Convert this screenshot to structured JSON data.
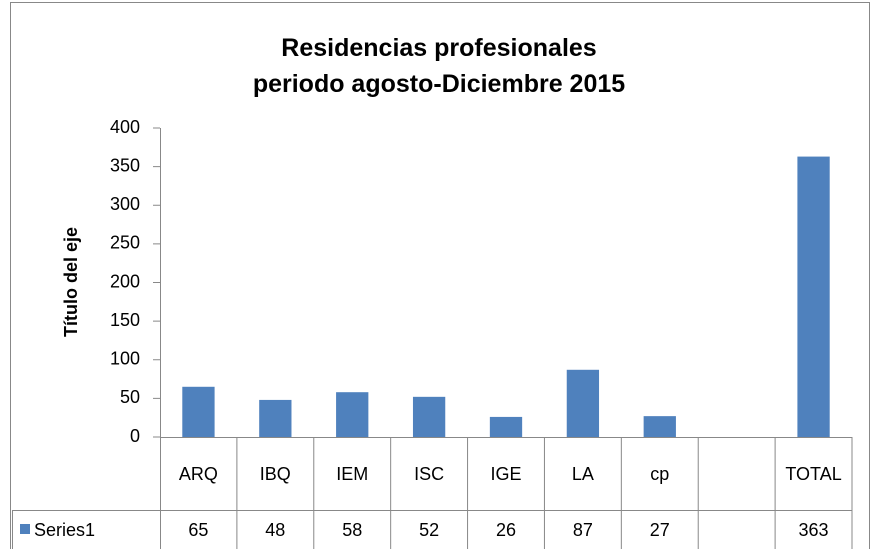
{
  "chart_data": {
    "type": "bar",
    "title": [
      "Residencias profesionales",
      "periodo agosto-Diciembre 2015"
    ],
    "y_label": "Título del eje",
    "categories": [
      "ARQ",
      "IBQ",
      "IEM",
      "ISC",
      "IGE",
      "LA",
      "cp",
      null,
      "TOTAL"
    ],
    "series": [
      {
        "name": "Series1",
        "color": "#4f81bd",
        "values": [
          65,
          48,
          58,
          52,
          26,
          87,
          27,
          null,
          363
        ]
      }
    ],
    "ylim": [
      0,
      400
    ],
    "yticks": [
      0,
      50,
      100,
      150,
      200,
      250,
      300,
      350,
      400
    ],
    "grid": false
  }
}
